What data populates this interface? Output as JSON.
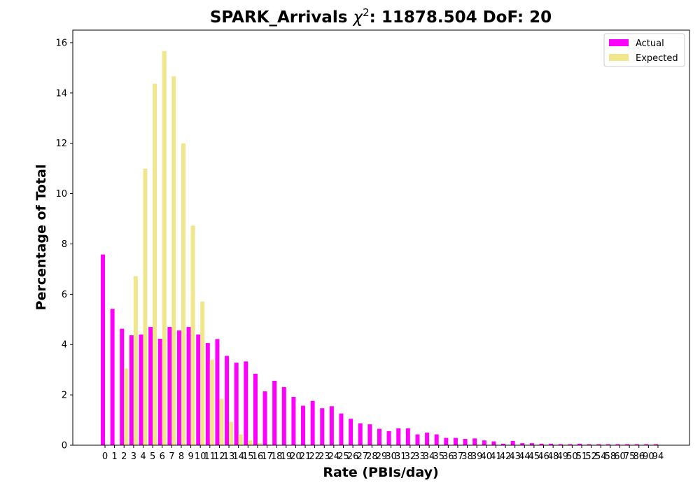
{
  "chart_data": {
    "type": "bar",
    "title_prefix": "SPARK_Arrivals ",
    "title_chi": "χ",
    "title_sup": "2",
    "title_suffix": ": 11878.504 DoF: 20",
    "xlabel": "Rate (PBIs/day)",
    "ylabel": "Percentage of Total",
    "ylim": [
      0,
      16.5
    ],
    "yticks": [
      0,
      2,
      4,
      6,
      8,
      10,
      12,
      14,
      16
    ],
    "legend_position": "top-right",
    "grid": false,
    "categories": [
      "0",
      "1",
      "2",
      "3",
      "4",
      "5",
      "6",
      "7",
      "8",
      "9",
      "10",
      "11",
      "12",
      "13",
      "14",
      "15",
      "16",
      "17",
      "18",
      "19",
      "20",
      "21",
      "22",
      "23",
      "24",
      "25",
      "26",
      "27",
      "28",
      "29",
      "30",
      "31",
      "32",
      "33",
      "34",
      "35",
      "36",
      "37",
      "38",
      "39",
      "40",
      "41",
      "42",
      "43",
      "44",
      "45",
      "46",
      "48",
      "49",
      "50",
      "51",
      "52",
      "54",
      "58",
      "60",
      "75",
      "86",
      "90",
      "94"
    ],
    "series": [
      {
        "name": "Actual",
        "color": "#ff00ff",
        "values": [
          7.58,
          5.42,
          4.63,
          4.37,
          4.4,
          4.7,
          4.23,
          4.7,
          4.56,
          4.7,
          4.4,
          4.06,
          4.22,
          3.55,
          3.28,
          3.33,
          2.84,
          2.14,
          2.56,
          2.31,
          1.92,
          1.57,
          1.76,
          1.47,
          1.55,
          1.26,
          1.05,
          0.87,
          0.83,
          0.65,
          0.56,
          0.67,
          0.67,
          0.43,
          0.5,
          0.43,
          0.29,
          0.29,
          0.25,
          0.27,
          0.19,
          0.15,
          0.06,
          0.17,
          0.08,
          0.08,
          0.06,
          0.06,
          0.04,
          0.04,
          0.06,
          0.04,
          0.04,
          0.04,
          0.04,
          0.04,
          0.04,
          0.04,
          0.04
        ]
      },
      {
        "name": "Expected",
        "color": "#f0e68c",
        "values": [
          0.0,
          0.0,
          3.05,
          6.72,
          10.99,
          14.37,
          15.67,
          14.66,
          12.0,
          8.73,
          5.71,
          3.4,
          1.85,
          0.93,
          0.43,
          0.19,
          0.08,
          0.03,
          0.01,
          0,
          0,
          0,
          0,
          0,
          0,
          0,
          0,
          0,
          0,
          0,
          0,
          0,
          0,
          0,
          0,
          0,
          0,
          0,
          0,
          0,
          0,
          0,
          0,
          0,
          0,
          0,
          0,
          0,
          0,
          0,
          0,
          0,
          0,
          0,
          0,
          0,
          0,
          0,
          0
        ]
      }
    ]
  }
}
